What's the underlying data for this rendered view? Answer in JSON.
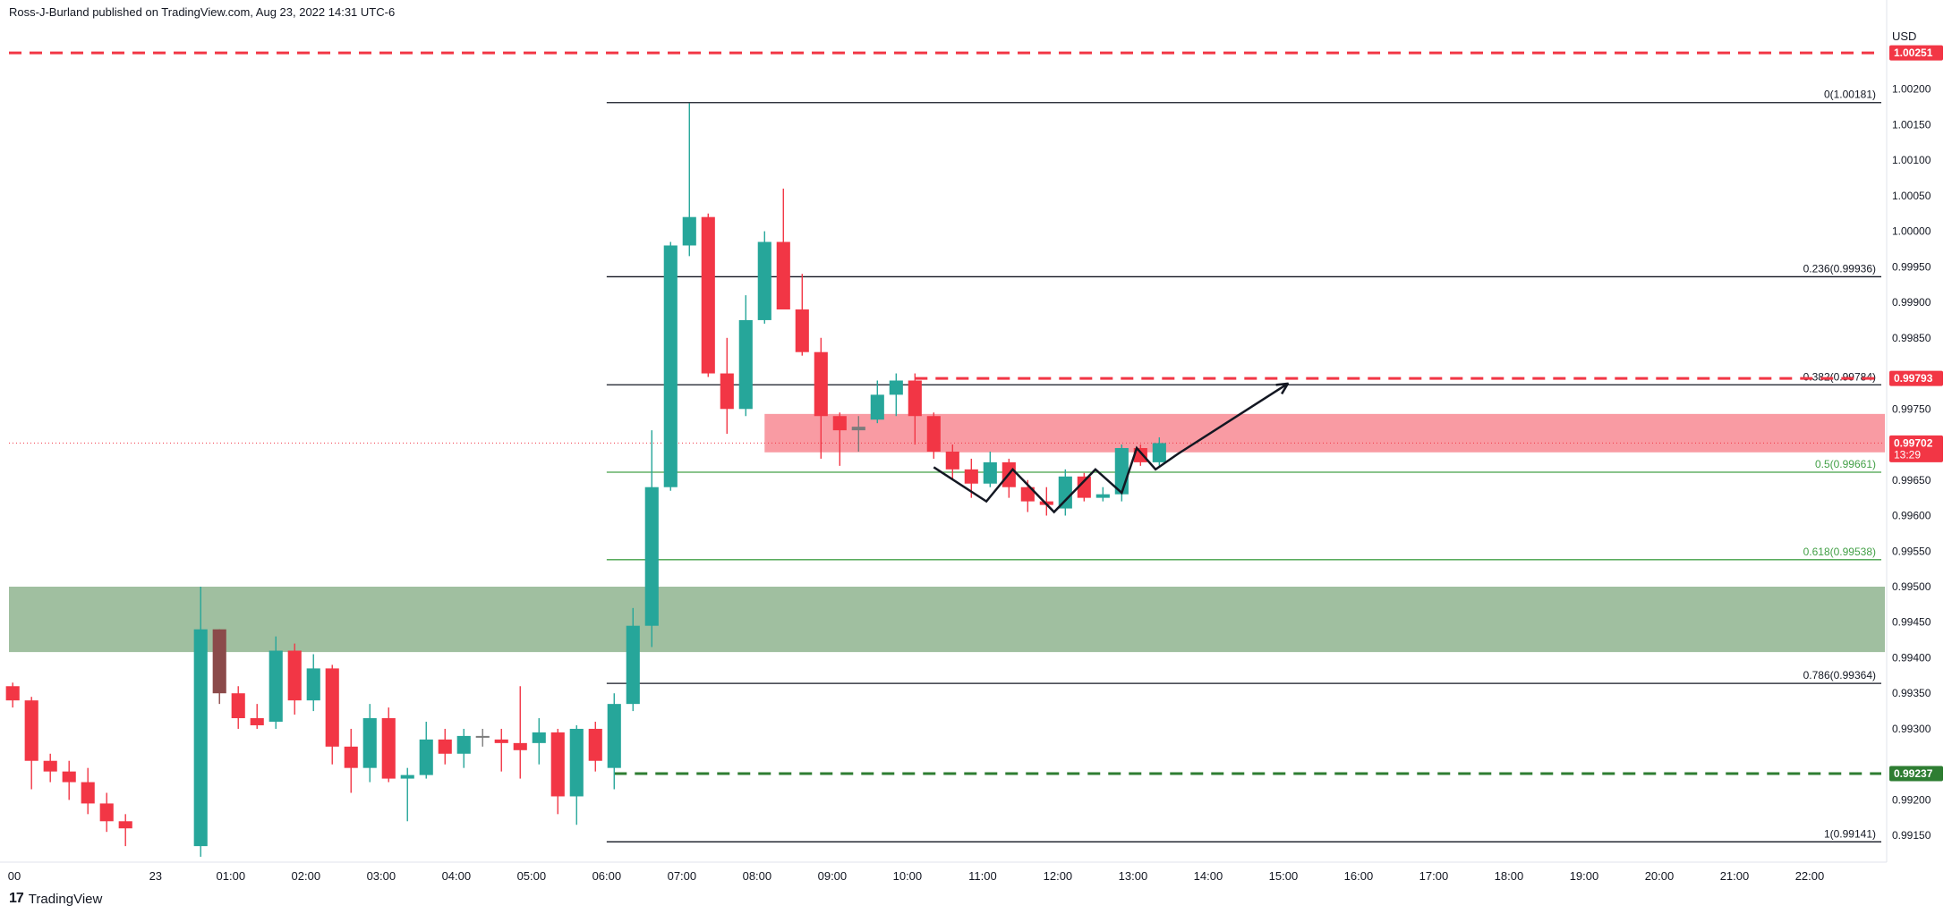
{
  "header": {
    "byline": "Ross-J-Burland published on TradingView.com, Aug 23, 2022 14:31 UTC-6"
  },
  "footer": {
    "brand": "TradingView",
    "logo_glyph": "17"
  },
  "colors": {
    "up": "#26a69a",
    "down": "#f23645",
    "neutral": "#7c7c7c",
    "fib_black": "#131722",
    "fib_green": "#43a047",
    "resistance_line": "#f23645",
    "support_line": "#2e7d32",
    "green_zone": "#8fb48f",
    "red_zone": "#f88a93"
  },
  "chart_data": {
    "type": "candlestick",
    "currency": "USD",
    "ylim": [
      0.99115,
      1.00275
    ],
    "y_ticks": [
      "1.00200",
      "1.00150",
      "1.00100",
      "1.00050",
      "1.00000",
      "0.99950",
      "0.99900",
      "0.99850",
      "0.99750",
      "0.99650",
      "0.99600",
      "0.99550",
      "0.99500",
      "0.99450",
      "0.99400",
      "0.99350",
      "0.99300",
      "0.99200",
      "0.99150"
    ],
    "x_ticks": [
      "00",
      "23",
      "01:00",
      "02:00",
      "03:00",
      "04:00",
      "05:00",
      "06:00",
      "07:00",
      "08:00",
      "09:00",
      "10:00",
      "11:00",
      "12:00",
      "13:00",
      "14:00",
      "15:00",
      "16:00",
      "17:00",
      "18:00",
      "19:00",
      "20:00",
      "21:00",
      "22:00"
    ],
    "x_tick_hours": [
      0,
      0.9,
      1.9,
      2.9,
      3.9,
      4.9,
      5.9,
      6.9,
      7.9,
      8.9,
      9.9,
      10.9,
      11.9,
      12.9,
      13.9,
      14.9,
      15.9,
      16.9,
      17.9,
      18.9,
      19.9,
      20.9,
      21.9,
      22.9
    ],
    "hours_range": [
      -1.05,
      23.9
    ],
    "candles": [
      {
        "t": -1.0,
        "o": 0.9936,
        "h": 0.99365,
        "l": 0.9933,
        "c": 0.9934
      },
      {
        "t": -0.75,
        "o": 0.9934,
        "h": 0.99345,
        "l": 0.99215,
        "c": 0.99255
      },
      {
        "t": -0.5,
        "o": 0.99255,
        "h": 0.99265,
        "l": 0.99225,
        "c": 0.9924
      },
      {
        "t": -0.25,
        "o": 0.9924,
        "h": 0.99255,
        "l": 0.992,
        "c": 0.99225
      },
      {
        "t": 0.0,
        "o": 0.99225,
        "h": 0.99245,
        "l": 0.9918,
        "c": 0.99195
      },
      {
        "t": 0.25,
        "o": 0.99195,
        "h": 0.9921,
        "l": 0.99155,
        "c": 0.9917
      },
      {
        "t": 0.5,
        "o": 0.9917,
        "h": 0.9918,
        "l": 0.99135,
        "c": 0.9916
      },
      {
        "t": 1.5,
        "o": 0.99135,
        "h": 0.995,
        "l": 0.9912,
        "c": 0.9944
      },
      {
        "t": 1.75,
        "o": 0.9944,
        "h": 0.9944,
        "l": 0.99335,
        "c": 0.9935
      },
      {
        "t": 2.0,
        "o": 0.9935,
        "h": 0.9936,
        "l": 0.993,
        "c": 0.99315
      },
      {
        "t": 2.25,
        "o": 0.99315,
        "h": 0.99335,
        "l": 0.993,
        "c": 0.99305
      },
      {
        "t": 2.5,
        "o": 0.9931,
        "h": 0.9943,
        "l": 0.993,
        "c": 0.9941
      },
      {
        "t": 2.75,
        "o": 0.9941,
        "h": 0.9942,
        "l": 0.9932,
        "c": 0.9934
      },
      {
        "t": 3.0,
        "o": 0.9934,
        "h": 0.99405,
        "l": 0.99325,
        "c": 0.99385
      },
      {
        "t": 3.25,
        "o": 0.99385,
        "h": 0.9939,
        "l": 0.9925,
        "c": 0.99275
      },
      {
        "t": 3.5,
        "o": 0.99275,
        "h": 0.993,
        "l": 0.9921,
        "c": 0.99245
      },
      {
        "t": 3.75,
        "o": 0.99245,
        "h": 0.99335,
        "l": 0.99225,
        "c": 0.99315
      },
      {
        "t": 4.0,
        "o": 0.99315,
        "h": 0.9933,
        "l": 0.99225,
        "c": 0.9923
      },
      {
        "t": 4.25,
        "o": 0.9923,
        "h": 0.99245,
        "l": 0.9917,
        "c": 0.99235
      },
      {
        "t": 4.5,
        "o": 0.99235,
        "h": 0.9931,
        "l": 0.9923,
        "c": 0.99285
      },
      {
        "t": 4.75,
        "o": 0.99285,
        "h": 0.993,
        "l": 0.9925,
        "c": 0.99265
      },
      {
        "t": 5.0,
        "o": 0.99265,
        "h": 0.993,
        "l": 0.99245,
        "c": 0.9929
      },
      {
        "t": 5.25,
        "o": 0.9929,
        "h": 0.993,
        "l": 0.99275,
        "c": 0.9929
      },
      {
        "t": 5.5,
        "o": 0.99285,
        "h": 0.993,
        "l": 0.9924,
        "c": 0.9928
      },
      {
        "t": 5.75,
        "o": 0.9928,
        "h": 0.9936,
        "l": 0.9923,
        "c": 0.9927
      },
      {
        "t": 6.0,
        "o": 0.9928,
        "h": 0.99315,
        "l": 0.9925,
        "c": 0.99295
      },
      {
        "t": 6.25,
        "o": 0.99295,
        "h": 0.993,
        "l": 0.9918,
        "c": 0.99205
      },
      {
        "t": 6.5,
        "o": 0.99205,
        "h": 0.99305,
        "l": 0.99165,
        "c": 0.993
      },
      {
        "t": 6.75,
        "o": 0.993,
        "h": 0.9931,
        "l": 0.9924,
        "c": 0.99255
      },
      {
        "t": 7.0,
        "o": 0.99245,
        "h": 0.9935,
        "l": 0.99215,
        "c": 0.99335
      },
      {
        "t": 7.25,
        "o": 0.99335,
        "h": 0.9947,
        "l": 0.99325,
        "c": 0.99445
      },
      {
        "t": 7.5,
        "o": 0.99445,
        "h": 0.9972,
        "l": 0.99415,
        "c": 0.9964
      },
      {
        "t": 7.75,
        "o": 0.9964,
        "h": 0.99985,
        "l": 0.99635,
        "c": 0.9998
      },
      {
        "t": 8.0,
        "o": 0.9998,
        "h": 1.0018,
        "l": 0.99965,
        "c": 1.0002
      },
      {
        "t": 8.25,
        "o": 1.0002,
        "h": 1.00025,
        "l": 0.99795,
        "c": 0.998
      },
      {
        "t": 8.5,
        "o": 0.998,
        "h": 0.9985,
        "l": 0.99715,
        "c": 0.9975
      },
      {
        "t": 8.75,
        "o": 0.9975,
        "h": 0.9991,
        "l": 0.9974,
        "c": 0.99875
      },
      {
        "t": 9.0,
        "o": 0.99875,
        "h": 1.0,
        "l": 0.9987,
        "c": 0.99985
      },
      {
        "t": 9.25,
        "o": 0.99985,
        "h": 1.0006,
        "l": 0.9989,
        "c": 0.9989
      },
      {
        "t": 9.5,
        "o": 0.9989,
        "h": 0.9994,
        "l": 0.99825,
        "c": 0.9983
      },
      {
        "t": 9.75,
        "o": 0.9983,
        "h": 0.9985,
        "l": 0.9968,
        "c": 0.9974
      },
      {
        "t": 10.0,
        "o": 0.9974,
        "h": 0.99745,
        "l": 0.9967,
        "c": 0.9972
      },
      {
        "t": 10.25,
        "o": 0.9972,
        "h": 0.9974,
        "l": 0.9969,
        "c": 0.99725
      },
      {
        "t": 10.5,
        "o": 0.99735,
        "h": 0.9979,
        "l": 0.9973,
        "c": 0.9977
      },
      {
        "t": 10.75,
        "o": 0.9977,
        "h": 0.998,
        "l": 0.9974,
        "c": 0.9979
      },
      {
        "t": 11.0,
        "o": 0.9979,
        "h": 0.998,
        "l": 0.997,
        "c": 0.9974
      },
      {
        "t": 11.25,
        "o": 0.9974,
        "h": 0.99745,
        "l": 0.9968,
        "c": 0.9969
      },
      {
        "t": 11.5,
        "o": 0.9969,
        "h": 0.997,
        "l": 0.9965,
        "c": 0.99665
      },
      {
        "t": 11.75,
        "o": 0.99665,
        "h": 0.9968,
        "l": 0.99625,
        "c": 0.99645
      },
      {
        "t": 12.0,
        "o": 0.99645,
        "h": 0.9969,
        "l": 0.9964,
        "c": 0.99675
      },
      {
        "t": 12.25,
        "o": 0.99675,
        "h": 0.9968,
        "l": 0.99625,
        "c": 0.9964
      },
      {
        "t": 12.5,
        "o": 0.9964,
        "h": 0.9965,
        "l": 0.99605,
        "c": 0.9962
      },
      {
        "t": 12.75,
        "o": 0.9962,
        "h": 0.9964,
        "l": 0.996,
        "c": 0.99615
      },
      {
        "t": 13.0,
        "o": 0.9961,
        "h": 0.99665,
        "l": 0.996,
        "c": 0.99655
      },
      {
        "t": 13.25,
        "o": 0.99655,
        "h": 0.9966,
        "l": 0.9962,
        "c": 0.99625
      },
      {
        "t": 13.5,
        "o": 0.99625,
        "h": 0.9964,
        "l": 0.9962,
        "c": 0.9963
      },
      {
        "t": 13.75,
        "o": 0.9963,
        "h": 0.997,
        "l": 0.9962,
        "c": 0.99695
      },
      {
        "t": 14.0,
        "o": 0.99695,
        "h": 0.997,
        "l": 0.9967,
        "c": 0.99675
      },
      {
        "t": 14.25,
        "o": 0.99675,
        "h": 0.9971,
        "l": 0.9967,
        "c": 0.99702
      }
    ],
    "fib_levels": [
      {
        "label": "0(1.00181)",
        "value": 1.00181,
        "color": "#131722"
      },
      {
        "label": "0.236(0.99936)",
        "value": 0.99936,
        "color": "#131722"
      },
      {
        "label": "0.382(0.99784)",
        "value": 0.99784,
        "color": "#131722"
      },
      {
        "label": "0.5(0.99661)",
        "value": 0.99661,
        "color": "#43a047"
      },
      {
        "label": "0.618(0.99538)",
        "value": 0.99538,
        "color": "#43a047"
      },
      {
        "label": "0.786(0.99364)",
        "value": 0.99364,
        "color": "#131722"
      },
      {
        "label": "1(0.99141)",
        "value": 0.99141,
        "color": "#131722"
      }
    ],
    "fib_start_hour": 6.9,
    "horizontal_lines": [
      {
        "value": 1.00251,
        "label": "1.00251",
        "color": "#f23645",
        "from_hour": -1.05
      },
      {
        "value": 0.99793,
        "label": "0.99793",
        "color": "#f23645",
        "from_hour": 11.0
      },
      {
        "value": 0.99237,
        "label": "0.99237",
        "color": "#2e7d32",
        "from_hour": 7.0
      }
    ],
    "zones": [
      {
        "name": "green",
        "from_hour": -1.05,
        "y1": 0.995,
        "y2": 0.99408,
        "color": "#8fb48f"
      },
      {
        "name": "red",
        "from_hour": 9.0,
        "y1": 0.99743,
        "y2": 0.99689,
        "color": "#f88a93"
      }
    ],
    "current_price": {
      "value": 0.99702,
      "label": "0.99702",
      "countdown": "13:29"
    },
    "pattern_path": [
      [
        11.25,
        0.99668
      ],
      [
        11.95,
        0.9962
      ],
      [
        12.3,
        0.99665
      ],
      [
        12.85,
        0.99605
      ],
      [
        13.4,
        0.99665
      ],
      [
        13.75,
        0.99632
      ],
      [
        13.95,
        0.99695
      ],
      [
        14.2,
        0.99665
      ],
      [
        14.5,
        0.99687
      ],
      [
        15.95,
        0.99785
      ]
    ]
  }
}
